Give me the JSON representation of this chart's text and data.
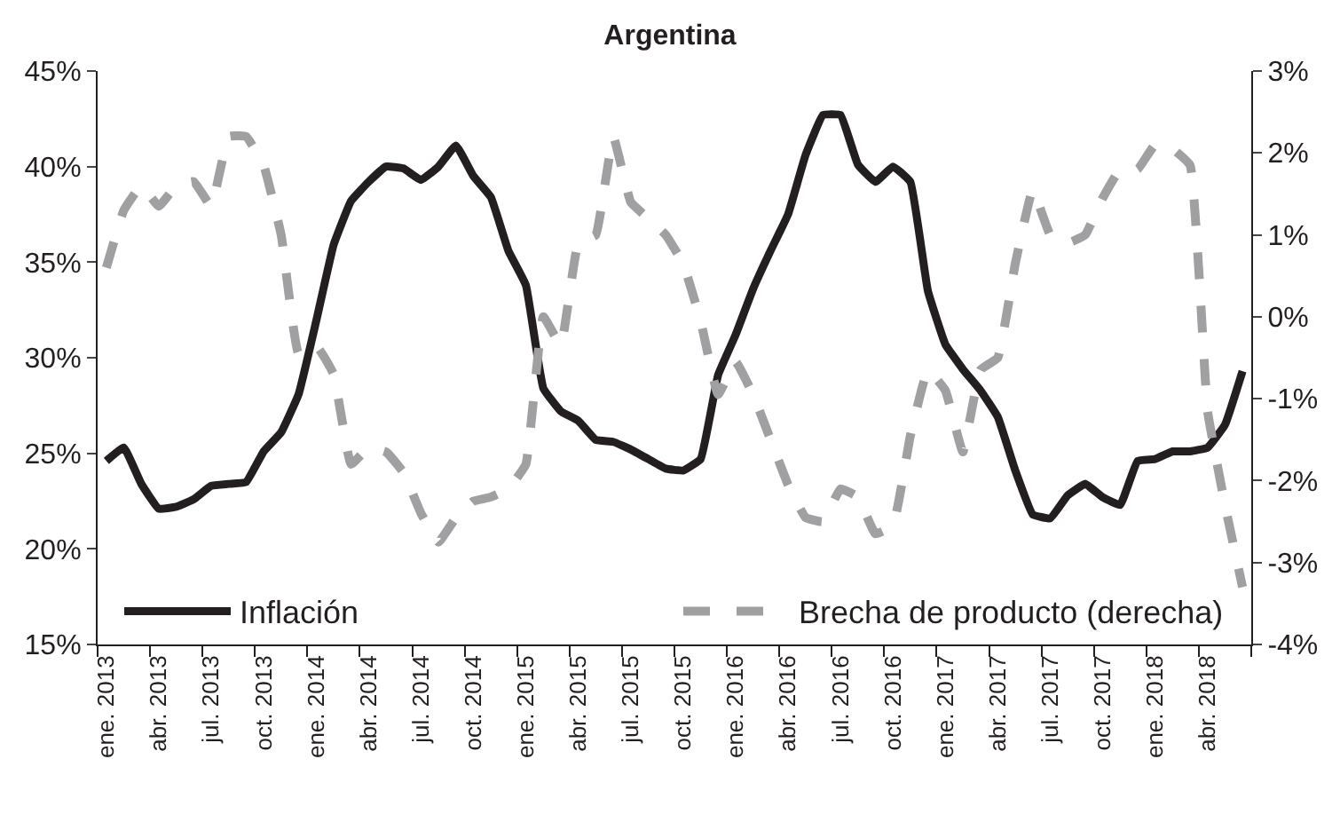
{
  "chart_data": {
    "type": "line",
    "title": "Argentina",
    "categories": [
      "ene. 2013",
      null,
      null,
      "abr. 2013",
      null,
      null,
      "jul. 2013",
      null,
      null,
      "oct. 2013",
      null,
      null,
      "ene. 2014",
      null,
      null,
      "abr. 2014",
      null,
      null,
      "jul. 2014",
      null,
      null,
      "oct. 2014",
      null,
      null,
      "ene. 2015",
      null,
      null,
      "abr. 2015",
      null,
      null,
      "jul. 2015",
      null,
      null,
      "oct. 2015",
      null,
      null,
      "ene. 2016",
      null,
      null,
      "abr. 2016",
      null,
      null,
      "jul. 2016",
      null,
      null,
      "oct. 2016",
      null,
      null,
      "ene. 2017",
      null,
      null,
      "abr. 2017",
      null,
      null,
      "jul. 2017",
      null,
      null,
      "oct. 2017",
      null,
      null,
      "ene. 2018",
      null,
      null,
      "abr. 2018",
      null,
      null
    ],
    "series": [
      {
        "name": "Inflación",
        "color": "#231f20",
        "line_style": "solid",
        "values": [
          24.6,
          25.3,
          23.4,
          22.1,
          22.2,
          22.6,
          23.3,
          23.4,
          23.5,
          25.1,
          26.1,
          28.1,
          31.9,
          35.9,
          38.2,
          39.2,
          40.0,
          39.9,
          39.3,
          40.0,
          41.1,
          39.5,
          38.4,
          35.6,
          33.8,
          28.4,
          27.2,
          26.7,
          25.7,
          25.6,
          25.2,
          24.7,
          24.2,
          24.1,
          24.7,
          29.1,
          31.2,
          33.6,
          35.6,
          37.5,
          40.6,
          42.7,
          42.7,
          40.1,
          39.2,
          40.0,
          39.2,
          33.5,
          30.7,
          29.4,
          28.3,
          26.9,
          24.1,
          21.8,
          21.6,
          22.8,
          23.4,
          22.7,
          22.3,
          24.6,
          24.7,
          25.1,
          25.1,
          25.3,
          26.5,
          29.3
        ]
      },
      {
        "name": "Brecha de producto (derecha)",
        "color": "#a0a0a2",
        "line_style": "dashed",
        "axis": "y2",
        "values": [
          0.6,
          1.3,
          1.6,
          1.35,
          1.6,
          1.65,
          1.35,
          2.2,
          2.2,
          1.85,
          1.0,
          -0.45,
          -0.35,
          -0.7,
          -1.8,
          -1.6,
          -1.65,
          -1.9,
          -2.4,
          -2.75,
          -2.45,
          -2.25,
          -2.2,
          -2.1,
          -1.8,
          0.0,
          -0.35,
          0.9,
          1.0,
          2.2,
          1.4,
          1.2,
          1.0,
          0.65,
          -0.05,
          -0.95,
          -0.55,
          -0.95,
          -1.5,
          -2.05,
          -2.45,
          -2.5,
          -2.1,
          -2.2,
          -2.65,
          -2.55,
          -1.45,
          -0.65,
          -0.9,
          -1.65,
          -0.65,
          -0.5,
          0.65,
          1.55,
          1.0,
          0.9,
          1.0,
          1.45,
          1.8,
          1.8,
          2.1,
          2.05,
          1.85,
          -1.15,
          -2.3,
          -3.3
        ]
      }
    ],
    "ylim": [
      15,
      45
    ],
    "yticks": [
      {
        "value": 15,
        "label": "15%"
      },
      {
        "value": 20,
        "label": "20%"
      },
      {
        "value": 25,
        "label": "25%"
      },
      {
        "value": 30,
        "label": "30%"
      },
      {
        "value": 35,
        "label": "35%"
      },
      {
        "value": 40,
        "label": "40%"
      },
      {
        "value": 45,
        "label": "45%"
      }
    ],
    "y2lim": [
      -4,
      3
    ],
    "y2ticks": [
      {
        "value": -4,
        "label": "-4%"
      },
      {
        "value": -3,
        "label": "-3%"
      },
      {
        "value": -2,
        "label": "-2%"
      },
      {
        "value": -1,
        "label": "-1%"
      },
      {
        "value": 0,
        "label": "0%"
      },
      {
        "value": 1,
        "label": "1%"
      },
      {
        "value": 2,
        "label": "2%"
      },
      {
        "value": 3,
        "label": "3%"
      }
    ],
    "legend": "bottom",
    "marker": "none"
  }
}
